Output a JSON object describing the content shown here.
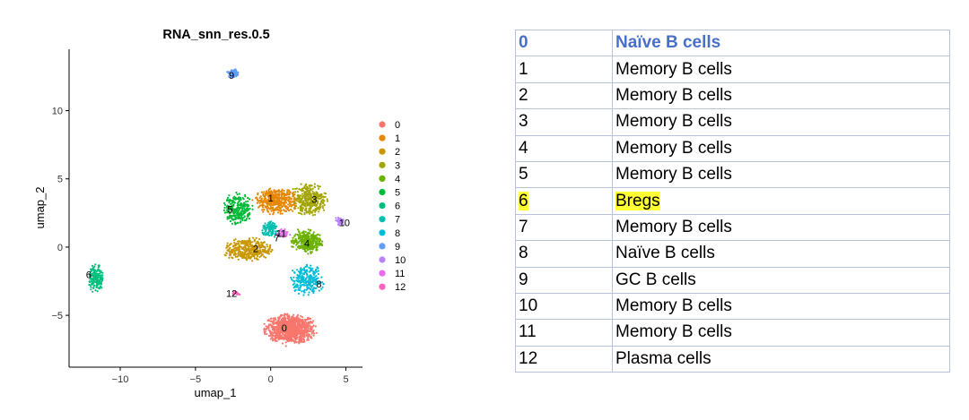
{
  "chart_data": {
    "type": "scatter",
    "title": "RNA_snn_res.0.5",
    "xlabel": "umap_1",
    "ylabel": "umap_2",
    "xlim": [
      -13.4,
      6.1
    ],
    "ylim": [
      -8.8,
      14.5
    ],
    "xticks": [
      -10,
      -5,
      0,
      5
    ],
    "yticks": [
      -5,
      0,
      5,
      10
    ],
    "xtick_labels": [
      "−10",
      "−5",
      "0",
      "5"
    ],
    "ytick_labels": [
      "−5",
      "0",
      "5",
      "10"
    ],
    "legend_position": "right",
    "clusters": [
      {
        "name": "0",
        "color": "#F8766D",
        "center": [
          1.3,
          -6.0
        ],
        "spread": [
          1.5,
          0.95
        ],
        "n": 900,
        "label_pos": [
          0.9,
          -5.9
        ]
      },
      {
        "name": "1",
        "color": "#E58700",
        "center": [
          0.4,
          3.4
        ],
        "spread": [
          1.3,
          0.85
        ],
        "n": 420,
        "label_pos": [
          0.0,
          3.6
        ]
      },
      {
        "name": "2",
        "color": "#C99800",
        "center": [
          -1.5,
          -0.2
        ],
        "spread": [
          1.4,
          0.75
        ],
        "n": 380,
        "label_pos": [
          -1.0,
          -0.1
        ]
      },
      {
        "name": "3",
        "color": "#A3A500",
        "center": [
          2.6,
          3.5
        ],
        "spread": [
          1.0,
          1.1
        ],
        "n": 330,
        "label_pos": [
          2.9,
          3.5
        ]
      },
      {
        "name": "4",
        "color": "#6BB100",
        "center": [
          2.4,
          0.4
        ],
        "spread": [
          0.9,
          0.75
        ],
        "n": 320,
        "label_pos": [
          2.4,
          0.3
        ]
      },
      {
        "name": "5",
        "color": "#00BA38",
        "center": [
          -2.2,
          2.8
        ],
        "spread": [
          0.85,
          1.0
        ],
        "n": 260,
        "label_pos": [
          -2.7,
          2.8
        ]
      },
      {
        "name": "6",
        "color": "#00BF7D",
        "center": [
          -11.6,
          -2.3
        ],
        "spread": [
          0.45,
          0.9
        ],
        "n": 170,
        "label_pos": [
          -12.1,
          -2.0
        ]
      },
      {
        "name": "7",
        "color": "#00C0AF",
        "center": [
          0.0,
          1.3
        ],
        "spread": [
          0.5,
          0.5
        ],
        "n": 110,
        "label_pos": [
          0.4,
          0.7
        ]
      },
      {
        "name": "8",
        "color": "#00BCD8",
        "center": [
          2.4,
          -2.4
        ],
        "spread": [
          1.0,
          0.95
        ],
        "n": 240,
        "label_pos": [
          3.2,
          -2.7
        ]
      },
      {
        "name": "9",
        "color": "#619CFF",
        "center": [
          -2.5,
          12.7
        ],
        "spread": [
          0.35,
          0.3
        ],
        "n": 90,
        "label_pos": [
          -2.6,
          12.6
        ]
      },
      {
        "name": "10",
        "color": "#B983FF",
        "center": [
          4.6,
          1.9
        ],
        "spread": [
          0.3,
          0.28
        ],
        "n": 40,
        "label_pos": [
          4.9,
          1.8
        ]
      },
      {
        "name": "11",
        "color": "#E76BF3",
        "center": [
          0.8,
          1.0
        ],
        "spread": [
          0.35,
          0.3
        ],
        "n": 45,
        "label_pos": [
          0.7,
          1.0
        ]
      },
      {
        "name": "12",
        "color": "#FF62BC",
        "center": [
          -2.3,
          -3.4
        ],
        "spread": [
          0.25,
          0.12
        ],
        "n": 25,
        "label_pos": [
          -2.6,
          -3.4
        ]
      }
    ]
  },
  "annotation_table": [
    {
      "cluster": "0",
      "cell_type": "Naïve B cells",
      "header": true
    },
    {
      "cluster": "1",
      "cell_type": "Memory B cells"
    },
    {
      "cluster": "2",
      "cell_type": "Memory B cells"
    },
    {
      "cluster": "3",
      "cell_type": "Memory B cells"
    },
    {
      "cluster": "4",
      "cell_type": "Memory B cells"
    },
    {
      "cluster": "5",
      "cell_type": "Memory B cells"
    },
    {
      "cluster": "6",
      "cell_type": "Bregs",
      "highlight": "#ffff33"
    },
    {
      "cluster": "7",
      "cell_type": "Memory B cells"
    },
    {
      "cluster": "8",
      "cell_type": "Naïve B cells"
    },
    {
      "cluster": "9",
      "cell_type": "GC B cells"
    },
    {
      "cluster": "10",
      "cell_type": "Memory B cells"
    },
    {
      "cluster": "11",
      "cell_type": "Memory B cells"
    },
    {
      "cluster": "12",
      "cell_type": "Plasma cells"
    }
  ]
}
